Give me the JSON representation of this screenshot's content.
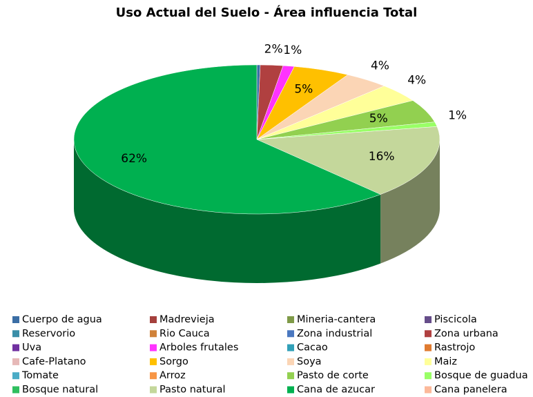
{
  "chart_data": {
    "type": "pie3d",
    "title": "Uso Actual del Suelo - Área influencia Total",
    "categories": [
      "Cuerpo de agua",
      "Madrevieja",
      "Mineria-cantera",
      "Piscicola",
      "Reservorio",
      "Rio Cauca",
      "Zona industrial",
      "Zona urbana",
      "Uva",
      "Arboles frutales",
      "Cacao",
      "Rastrojo",
      "Cafe-Platano",
      "Sorgo",
      "Soya",
      "Maiz",
      "Tomate",
      "Arroz",
      "Pasto de corte",
      "Bosque de guadua",
      "Bosque natural",
      "Pasto natural",
      "Cana de azucar",
      "Cana panelera"
    ],
    "values": [
      0.3,
      0,
      0,
      0,
      0,
      0,
      0,
      2,
      0,
      1,
      0,
      0,
      0,
      5,
      4,
      4,
      0,
      0,
      5,
      1,
      0,
      16,
      62,
      0
    ],
    "value_labels": [
      null,
      null,
      null,
      null,
      null,
      null,
      null,
      "2%",
      null,
      "1%",
      null,
      null,
      null,
      "5%",
      "4%",
      "4%",
      null,
      null,
      "5%",
      "1%",
      null,
      "16%",
      "62%",
      null
    ],
    "colors": [
      "#3b6ea5",
      "#a5403d",
      "#7f9a48",
      "#664d8a",
      "#3a8ea8",
      "#d0823a",
      "#4a78c0",
      "#b04040",
      "#7030a0",
      "#ff33ff",
      "#31a0b8",
      "#e07b30",
      "#e6b8b7",
      "#ffc000",
      "#fbd5b5",
      "#ffff99",
      "#4bacc6",
      "#f79646",
      "#92d050",
      "#99ff66",
      "#2fbf5f",
      "#c4d79b",
      "#00b050",
      "#fcb99a"
    ],
    "legend": "bottom"
  }
}
